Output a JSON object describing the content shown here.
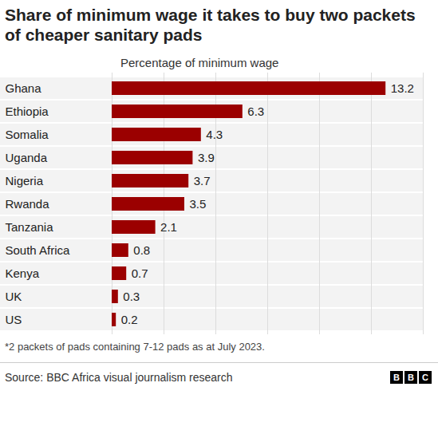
{
  "chart_data": {
    "type": "bar",
    "orientation": "horizontal",
    "title": "Share of minimum wage it takes to buy two packets of cheaper sanitary pads",
    "subtitle": "Percentage of minimum wage",
    "note": "*2 packets of pads containing 7-12 pads as at July 2023.",
    "source": "Source: BBC Africa visual journalism research",
    "branding": "BBC",
    "categories": [
      "Ghana",
      "Ethiopia",
      "Somalia",
      "Uganda",
      "Nigeria",
      "Rwanda",
      "Tanzania",
      "South Africa",
      "Kenya",
      "UK",
      "US"
    ],
    "values": [
      13.2,
      6.3,
      4.3,
      3.9,
      3.7,
      3.5,
      2.1,
      0.8,
      0.7,
      0.3,
      0.2
    ],
    "color": "#9b0000",
    "xlim": [
      0,
      15
    ],
    "xticks": [
      0,
      2.5,
      5,
      7.5,
      10,
      12.5,
      15
    ],
    "grid": true,
    "data_labels": true,
    "tick_labels": "y"
  }
}
